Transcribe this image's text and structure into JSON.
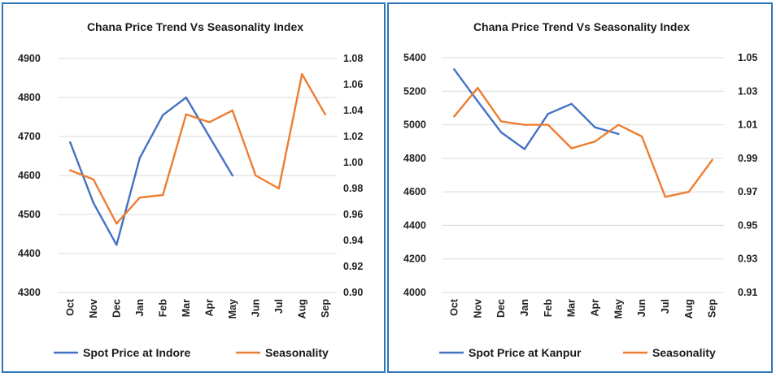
{
  "colors": {
    "border": "#2e75b6",
    "price": "#4472c4",
    "seasonality": "#ed7d31",
    "grid": "#d9d9d9"
  },
  "chart_data": [
    {
      "type": "line",
      "title": "Chana Price Trend  Vs Seasonality Index",
      "categories": [
        "Oct",
        "Nov",
        "Dec",
        "Jan",
        "Feb",
        "Mar",
        "Apr",
        "May",
        "Jun",
        "Jul",
        "Aug",
        "Sep"
      ],
      "y_left": {
        "min": 4300,
        "max": 4900,
        "step": 100,
        "ticks": [
          "4300",
          "4400",
          "4500",
          "4600",
          "4700",
          "4800",
          "4900"
        ]
      },
      "y_right": {
        "min": 0.9,
        "max": 1.08,
        "step": 0.02,
        "ticks": [
          "0.90",
          "0.92",
          "0.94",
          "0.96",
          "0.98",
          "1.00",
          "1.02",
          "1.04",
          "1.06",
          "1.08"
        ]
      },
      "grid": true,
      "legend_position": "bottom",
      "series": [
        {
          "name": "Spot Price at Indore",
          "axis": "left",
          "color": "#4472c4",
          "values": [
            4685,
            4530,
            4422,
            4645,
            4755,
            4800,
            4700,
            4600,
            null,
            null,
            null,
            null
          ]
        },
        {
          "name": "Seasonality",
          "axis": "right",
          "color": "#ed7d31",
          "values": [
            0.994,
            0.987,
            0.953,
            0.973,
            0.975,
            1.037,
            1.031,
            1.04,
            0.99,
            0.98,
            1.068,
            1.037
          ]
        }
      ]
    },
    {
      "type": "line",
      "title": "Chana Price Trend Vs Seasonality Index",
      "categories": [
        "Oct",
        "Nov",
        "Dec",
        "Jan",
        "Feb",
        "Mar",
        "Apr",
        "May",
        "Jun",
        "Jul",
        "Aug",
        "Sep"
      ],
      "y_left": {
        "min": 4000,
        "max": 5400,
        "step": 200,
        "ticks": [
          "4000",
          "4200",
          "4400",
          "4600",
          "4800",
          "5000",
          "5200",
          "5400"
        ]
      },
      "y_right": {
        "min": 0.91,
        "max": 1.05,
        "step": 0.02,
        "ticks": [
          "0.91",
          "0.93",
          "0.95",
          "0.97",
          "0.99",
          "1.01",
          "1.03",
          "1.05"
        ]
      },
      "grid": true,
      "legend_position": "bottom",
      "series": [
        {
          "name": "Spot Price at Kanpur",
          "axis": "left",
          "color": "#4472c4",
          "values": [
            5330,
            5140,
            4955,
            4855,
            5065,
            5125,
            4985,
            4945,
            null,
            null,
            null,
            null
          ]
        },
        {
          "name": "Seasonality",
          "axis": "right",
          "color": "#ed7d31",
          "values": [
            1.015,
            1.032,
            1.012,
            1.01,
            1.01,
            0.996,
            1.0,
            1.01,
            1.003,
            0.967,
            0.97,
            0.989
          ]
        }
      ]
    }
  ]
}
